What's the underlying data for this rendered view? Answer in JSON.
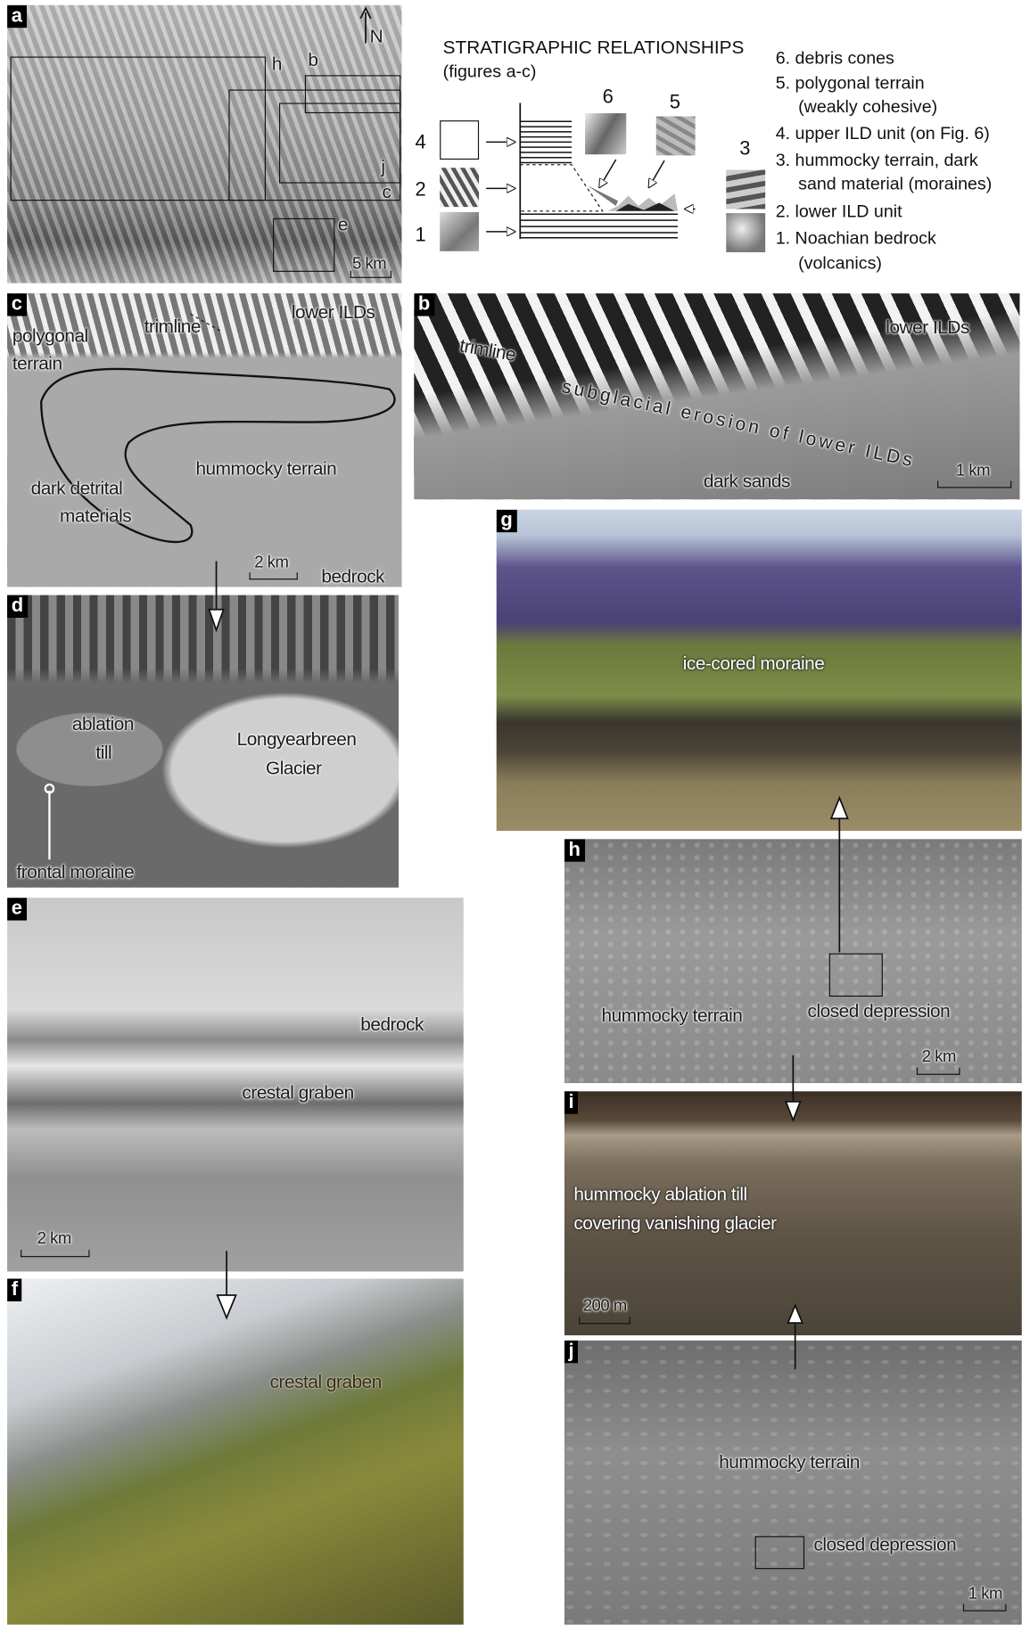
{
  "legend": {
    "title": "STRATIGRAPHIC RELATIONSHIPS",
    "subtitle": "(figures a-c)",
    "column_numbers": [
      "4",
      "2",
      "1",
      "6",
      "5",
      "3"
    ],
    "items": [
      "6. debris cones",
      "5. polygonal terrain",
      "(weakly cohesive)",
      "4. upper ILD unit (on Fig. 6)",
      "3. hummocky terrain, dark",
      "sand material (moraines)",
      "2. lower ILD unit",
      "1. Noachian bedrock",
      "(volcanics)"
    ]
  },
  "panels": [
    {
      "letter": "a",
      "labels": [
        "h",
        "b",
        "j",
        "c",
        "e",
        "N",
        "5 km"
      ]
    },
    {
      "letter": "c",
      "labels": [
        "polygonal",
        "terrain",
        "trimline",
        "lower ILDs",
        "hummocky terrain",
        "dark detrital",
        "materials",
        "2 km",
        "bedrock"
      ]
    },
    {
      "letter": "b",
      "labels": [
        "trimline",
        "subglacial erosion of lower ILDs",
        "lower ILDs",
        "dark sands",
        "1 km"
      ]
    },
    {
      "letter": "d",
      "labels": [
        "ablation",
        "till",
        "Longyearbreen",
        "Glacier",
        "frontal moraine"
      ]
    },
    {
      "letter": "g",
      "labels": [
        "ice-cored moraine"
      ]
    },
    {
      "letter": "e",
      "labels": [
        "bedrock",
        "crestal graben",
        "2 km"
      ]
    },
    {
      "letter": "h",
      "labels": [
        "hummocky terrain",
        "closed depression",
        "2 km"
      ]
    },
    {
      "letter": "f",
      "labels": [
        "crestal graben"
      ]
    },
    {
      "letter": "i",
      "labels": [
        "hummocky ablation till",
        "covering vanishing glacier",
        "200 m"
      ]
    },
    {
      "letter": "j",
      "labels": [
        "hummocky terrain",
        "closed depression",
        "1 km"
      ]
    }
  ]
}
